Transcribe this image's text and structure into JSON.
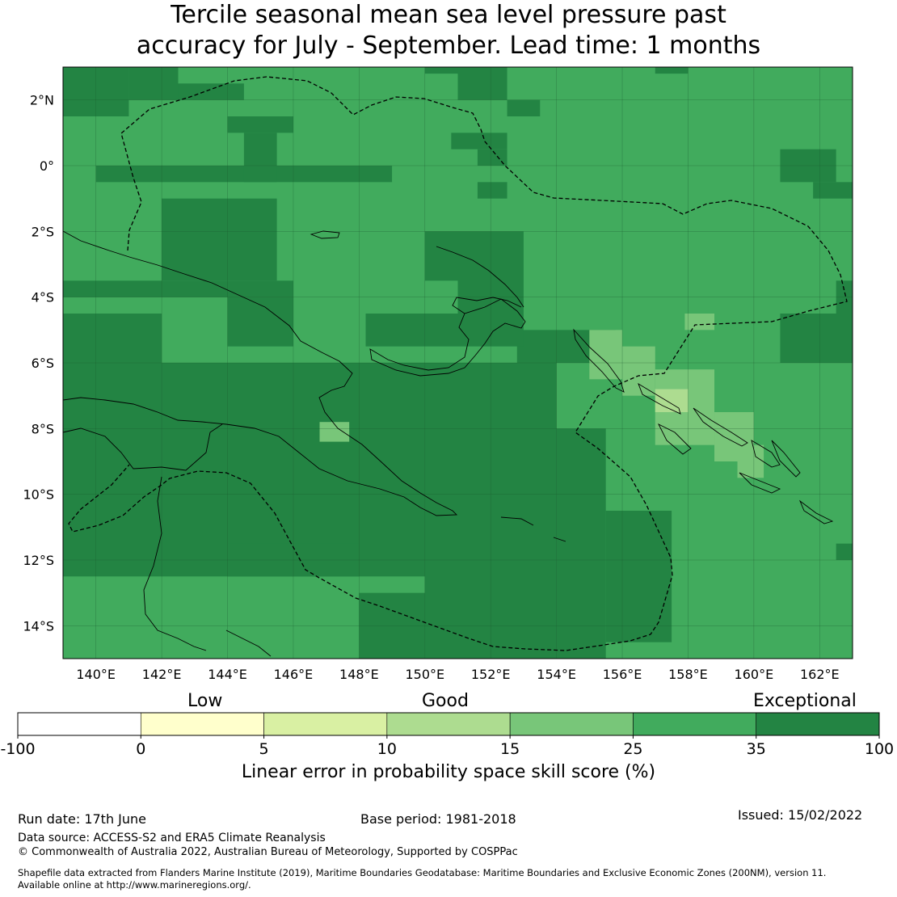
{
  "title": {
    "line1": "Tercile seasonal mean sea level pressure past",
    "line2": "accuracy for July - September. Lead time: 1 months"
  },
  "map": {
    "lon_range": [
      139,
      163
    ],
    "lat_range": [
      -15,
      3
    ],
    "lon_ticks": [
      "140°E",
      "142°E",
      "144°E",
      "146°E",
      "148°E",
      "150°E",
      "152°E",
      "154°E",
      "156°E",
      "158°E",
      "160°E",
      "162°E"
    ],
    "lat_ticks": [
      "2°N",
      "0°",
      "2°S",
      "4°S",
      "6°S",
      "8°S",
      "10°S",
      "12°S",
      "14°S"
    ],
    "gridlines": true,
    "category_colors": {
      "c10": "#addc90",
      "c15": "#78c679",
      "c25": "#41ab5d",
      "c35": "#238443"
    },
    "regions": {
      "default_category": "c25",
      "high_skill_areas": [
        [
          139,
          142,
          -12.5,
          -4.5
        ],
        [
          142,
          150,
          -12.5,
          -6
        ],
        [
          150,
          154,
          -15,
          -6
        ],
        [
          154,
          155.5,
          -15,
          -8
        ],
        [
          155.5,
          157.5,
          -14.5,
          -10.5
        ],
        [
          148,
          150,
          -15,
          -13
        ],
        [
          144,
          148,
          -12.5,
          -11.5
        ],
        [
          152.8,
          155.8,
          -6,
          -5
        ],
        [
          144,
          146,
          -5.5,
          -4
        ],
        [
          148.2,
          153,
          -5.5,
          -4.5
        ],
        [
          151,
          153,
          -4.5,
          -2
        ],
        [
          150,
          151,
          -3.5,
          -2
        ],
        [
          139,
          146,
          -4,
          -3.5
        ],
        [
          142,
          145.5,
          -3.5,
          -1
        ],
        [
          144,
          149,
          -0.5,
          0
        ],
        [
          140,
          144,
          -0.5,
          0
        ],
        [
          144.5,
          145.5,
          1,
          -0.5
        ],
        [
          144,
          146,
          1.5,
          1
        ],
        [
          139,
          141,
          3,
          1.5
        ],
        [
          141,
          142.5,
          3,
          2
        ],
        [
          142.5,
          144.5,
          2.5,
          2
        ],
        [
          151,
          152.5,
          3,
          2
        ],
        [
          152.5,
          153.5,
          2,
          1.5
        ],
        [
          150,
          151.5,
          3,
          2.8
        ],
        [
          150.8,
          152.5,
          1,
          0.5
        ],
        [
          151.6,
          152.5,
          0.5,
          0
        ],
        [
          151.6,
          152.5,
          -0.5,
          -1
        ],
        [
          157,
          158,
          3,
          2.8
        ],
        [
          160.8,
          162.5,
          0.5,
          -0.5
        ],
        [
          161.8,
          163,
          -0.5,
          -1
        ],
        [
          160.8,
          163,
          -4.5,
          -6
        ],
        [
          162.5,
          163,
          -3.5,
          -4.5
        ],
        [
          162.5,
          163,
          -11.5,
          -12
        ]
      ],
      "low_skill_areas": [
        [
          155,
          156,
          -5,
          -6.5
        ],
        [
          156,
          157,
          -5.5,
          -7
        ],
        [
          157,
          158.8,
          -6.2,
          -8.5
        ],
        [
          158.8,
          160,
          -7.5,
          -9
        ],
        [
          159.5,
          160.3,
          -8.5,
          -9.5
        ],
        [
          157.9,
          158.8,
          -4.5,
          -5
        ],
        [
          146.8,
          147.7,
          -7.8,
          -8.4
        ]
      ],
      "mid_skill_areas": [
        [
          157,
          158,
          -6.8,
          -7.5
        ]
      ]
    }
  },
  "colorbar": {
    "labels": [
      "-100",
      "0",
      "5",
      "10",
      "15",
      "25",
      "35",
      "100"
    ],
    "colors": [
      "#ffffff",
      "#ffffcc",
      "#d9f0a3",
      "#addc90",
      "#78c679",
      "#41ab5d",
      "#238443"
    ],
    "category_low": "Low",
    "category_good": "Good",
    "category_exceptional": "Exceptional",
    "label": "Linear error in probability space skill score (%)"
  },
  "footer": {
    "run_date": "Run date: 17th June",
    "base_period": "Base period: 1981-2018",
    "issued": "Issued: 15/02/2022",
    "data_source": "Data source: ACCESS-S2 and ERA5 Climate Reanalysis",
    "copyright": "© Commonwealth of Australia 2022, Australian Bureau of Meteorology, Supported by COSPPac",
    "shapefile_1": "Shapefile data extracted from Flanders Marine Institute (2019), Maritime Boundaries Geodatabase: Maritime Boundaries and Exclusive Economic Zones (200NM), version 11.",
    "shapefile_2": "Available online at http://www.marineregions.org/."
  }
}
